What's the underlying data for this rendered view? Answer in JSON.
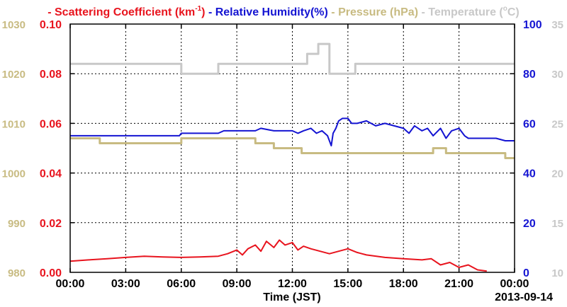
{
  "chart_data": {
    "type": "line",
    "xlabel": "Time (JST)",
    "date_label": "2013-09-14",
    "x_ticks": [
      "00:00",
      "03:00",
      "06:00",
      "09:00",
      "12:00",
      "15:00",
      "18:00",
      "21:00",
      "00:00"
    ],
    "x_range_hours": [
      0,
      24
    ],
    "grid": true,
    "legend": {
      "placement": "top",
      "items": [
        {
          "marker": "-",
          "label": "Scattering Coefficient (km",
          "sup": "-1",
          "suffix": ")",
          "color": "#e8141e"
        },
        {
          "marker": "-",
          "label": "Relative Humidity(%)",
          "sup": "",
          "suffix": "",
          "color": "#1414d2"
        },
        {
          "marker": "-",
          "label": "Pressure (hPa)",
          "sup": "",
          "suffix": "",
          "color": "#c8bb82"
        },
        {
          "marker": "-",
          "label": "Temperature (",
          "sup": "o",
          "suffix": "C)",
          "color": "#c8c8c8"
        }
      ]
    },
    "axes": {
      "pressure": {
        "side": "left-outer",
        "range": [
          980,
          1030
        ],
        "ticks": [
          "980",
          "990",
          "1000",
          "1010",
          "1020",
          "1030"
        ],
        "color": "#c8bb82"
      },
      "scattering": {
        "side": "left-inner",
        "range": [
          0,
          0.1
        ],
        "ticks": [
          "0.00",
          "0.02",
          "0.04",
          "0.06",
          "0.08",
          "0.10"
        ],
        "color": "#e8141e"
      },
      "humidity": {
        "side": "right-inner",
        "range": [
          0,
          100
        ],
        "ticks": [
          "0",
          "20",
          "40",
          "60",
          "80",
          "100"
        ],
        "color": "#1414d2"
      },
      "temperature": {
        "side": "right-outer",
        "range": [
          10,
          35
        ],
        "ticks": [
          "10",
          "15",
          "20",
          "25",
          "30",
          "35"
        ],
        "color": "#c8c8c8"
      }
    },
    "series": [
      {
        "name": "Temperature",
        "axis": "temperature",
        "color": "#c8c8c8",
        "step": true,
        "x": [
          0,
          6.0,
          6.0,
          8.0,
          8.0,
          12.8,
          12.8,
          13.4,
          13.4,
          14.0,
          14.0,
          15.4,
          15.4,
          24
        ],
        "y": [
          31,
          31,
          30,
          30,
          31,
          31,
          32,
          32,
          33,
          33,
          30,
          30,
          31,
          31
        ]
      },
      {
        "name": "Pressure",
        "axis": "pressure",
        "color": "#c8bb82",
        "step": true,
        "x": [
          0,
          1.6,
          1.6,
          6.0,
          6.0,
          6.5,
          6.5,
          10.0,
          10.0,
          11.0,
          11.0,
          12.5,
          12.5,
          19.6,
          19.6,
          20.3,
          20.3,
          22.0,
          22.0,
          23.5,
          23.5,
          24
        ],
        "y": [
          1007,
          1007,
          1006,
          1006,
          1007,
          1007,
          1007,
          1007,
          1006,
          1006,
          1005,
          1005,
          1004,
          1004,
          1005,
          1005,
          1004,
          1004,
          1004,
          1004,
          1003,
          1003
        ]
      },
      {
        "name": "Relative Humidity",
        "axis": "humidity",
        "color": "#1414d2",
        "step": false,
        "x": [
          0,
          1.0,
          2.0,
          3.0,
          4.0,
          5.0,
          5.9,
          6.0,
          7.0,
          8.0,
          8.3,
          9.0,
          10.0,
          10.3,
          11.0,
          11.5,
          12.0,
          12.3,
          12.6,
          13.0,
          13.3,
          13.6,
          13.9,
          14.1,
          14.2,
          14.35,
          14.5,
          14.7,
          15.0,
          15.2,
          15.5,
          16.0,
          16.5,
          17.0,
          17.5,
          18.0,
          18.3,
          18.6,
          19.0,
          19.3,
          19.6,
          20.0,
          20.3,
          20.6,
          21.0,
          21.3,
          21.5,
          22.0,
          22.5,
          23.0,
          23.5,
          24
        ],
        "y": [
          55,
          55,
          55,
          55,
          55,
          55,
          55,
          56,
          56,
          56,
          57,
          57,
          57,
          58,
          57,
          57,
          57,
          56,
          57,
          58,
          56,
          57,
          55,
          51,
          56,
          58,
          61,
          62,
          62,
          60,
          60,
          61,
          59,
          60,
          59,
          58,
          56,
          59,
          57,
          58,
          55,
          58,
          54,
          57,
          58,
          55,
          54,
          54,
          54,
          54,
          53,
          53
        ]
      },
      {
        "name": "Scattering Coefficient",
        "axis": "scattering",
        "color": "#e8141e",
        "step": false,
        "x": [
          0,
          1.0,
          2.0,
          3.0,
          4.0,
          5.0,
          6.0,
          7.0,
          8.0,
          8.5,
          9.0,
          9.3,
          9.6,
          10.0,
          10.3,
          10.6,
          11.0,
          11.3,
          11.6,
          12.0,
          12.3,
          12.6,
          13.0,
          13.5,
          14.0,
          14.5,
          15.0,
          15.5,
          16.0,
          17.0,
          18.0,
          19.0,
          19.5,
          20.0,
          20.5,
          21.0,
          21.5,
          22.0,
          22.5
        ],
        "y": [
          0.0045,
          0.005,
          0.0055,
          0.006,
          0.0065,
          0.0062,
          0.006,
          0.0062,
          0.0065,
          0.0075,
          0.009,
          0.007,
          0.0095,
          0.011,
          0.0085,
          0.0125,
          0.01,
          0.013,
          0.011,
          0.012,
          0.009,
          0.0105,
          0.0095,
          0.0085,
          0.0075,
          0.0085,
          0.0095,
          0.008,
          0.007,
          0.006,
          0.0055,
          0.005,
          0.0055,
          0.003,
          0.004,
          0.002,
          0.003,
          0.001,
          0.0005
        ]
      }
    ]
  }
}
